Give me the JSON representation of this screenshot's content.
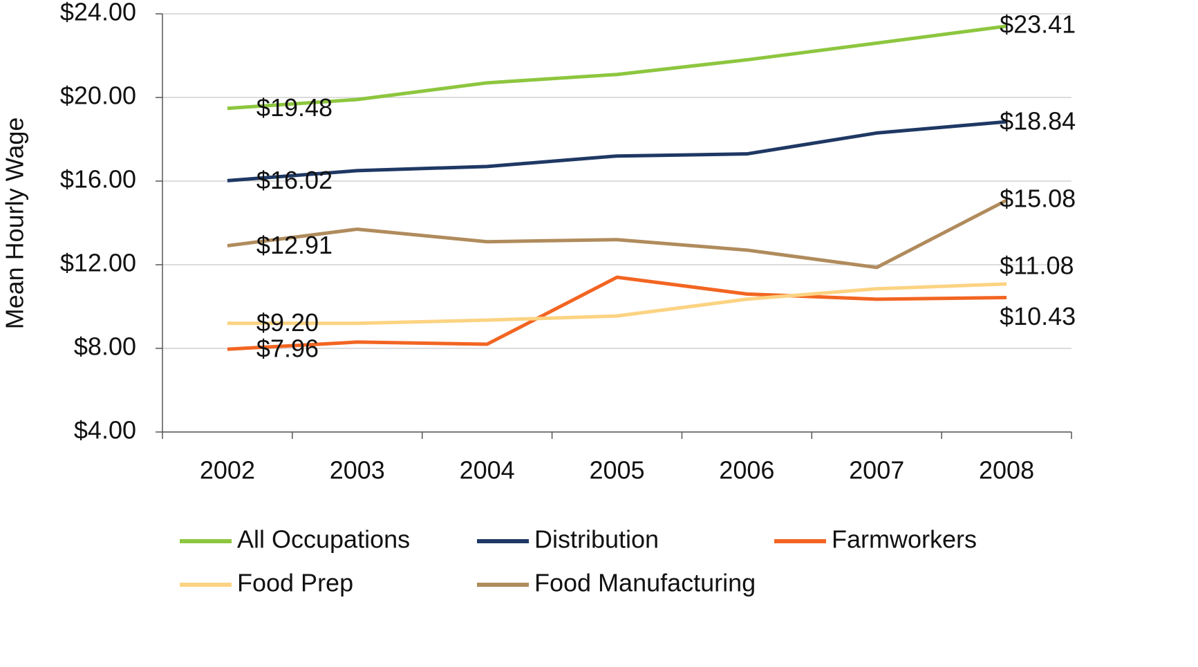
{
  "chart_data": {
    "type": "line",
    "y_axis_label": "Mean Hourly Wage",
    "categories": [
      "2002",
      "2003",
      "2004",
      "2005",
      "2006",
      "2007",
      "2008"
    ],
    "series": [
      {
        "name": "All Occupations",
        "color": "#8dc63f",
        "values": [
          19.48,
          19.9,
          20.7,
          21.1,
          21.8,
          22.6,
          23.41
        ],
        "value_labels": [
          "$19.48",
          null,
          null,
          null,
          null,
          null,
          "$23.41"
        ]
      },
      {
        "name": "Distribution",
        "color": "#1f3864",
        "values": [
          16.02,
          16.5,
          16.7,
          17.2,
          17.3,
          18.3,
          18.84
        ],
        "value_labels": [
          "$16.02",
          null,
          null,
          null,
          null,
          null,
          "$18.84"
        ]
      },
      {
        "name": "Farmworkers",
        "color": "#f26522",
        "values": [
          7.96,
          8.3,
          8.2,
          11.4,
          10.6,
          10.35,
          10.43
        ],
        "value_labels": [
          "$7.96",
          null,
          null,
          null,
          null,
          null,
          "$10.43"
        ]
      },
      {
        "name": "Food Prep",
        "color": "#fcd382",
        "values": [
          9.2,
          9.2,
          9.35,
          9.55,
          10.35,
          10.85,
          11.08
        ],
        "value_labels": [
          "$9.20",
          null,
          null,
          null,
          null,
          null,
          "$11.08"
        ]
      },
      {
        "name": "Food Manufacturing",
        "color": "#b08b5c",
        "values": [
          12.91,
          13.7,
          13.1,
          13.2,
          12.7,
          11.87,
          15.08
        ],
        "value_labels": [
          "$12.91",
          null,
          null,
          null,
          null,
          null,
          "$15.08"
        ]
      }
    ],
    "ylim": [
      4,
      24
    ],
    "yticks": [
      {
        "value": 4,
        "label": "$4.00"
      },
      {
        "value": 8,
        "label": "$8.00"
      },
      {
        "value": 12,
        "label": "$12.00"
      },
      {
        "value": 16,
        "label": "$16.00"
      },
      {
        "value": 20,
        "label": "$20.00"
      },
      {
        "value": 24,
        "label": "$24.00"
      }
    ],
    "grid": true
  }
}
